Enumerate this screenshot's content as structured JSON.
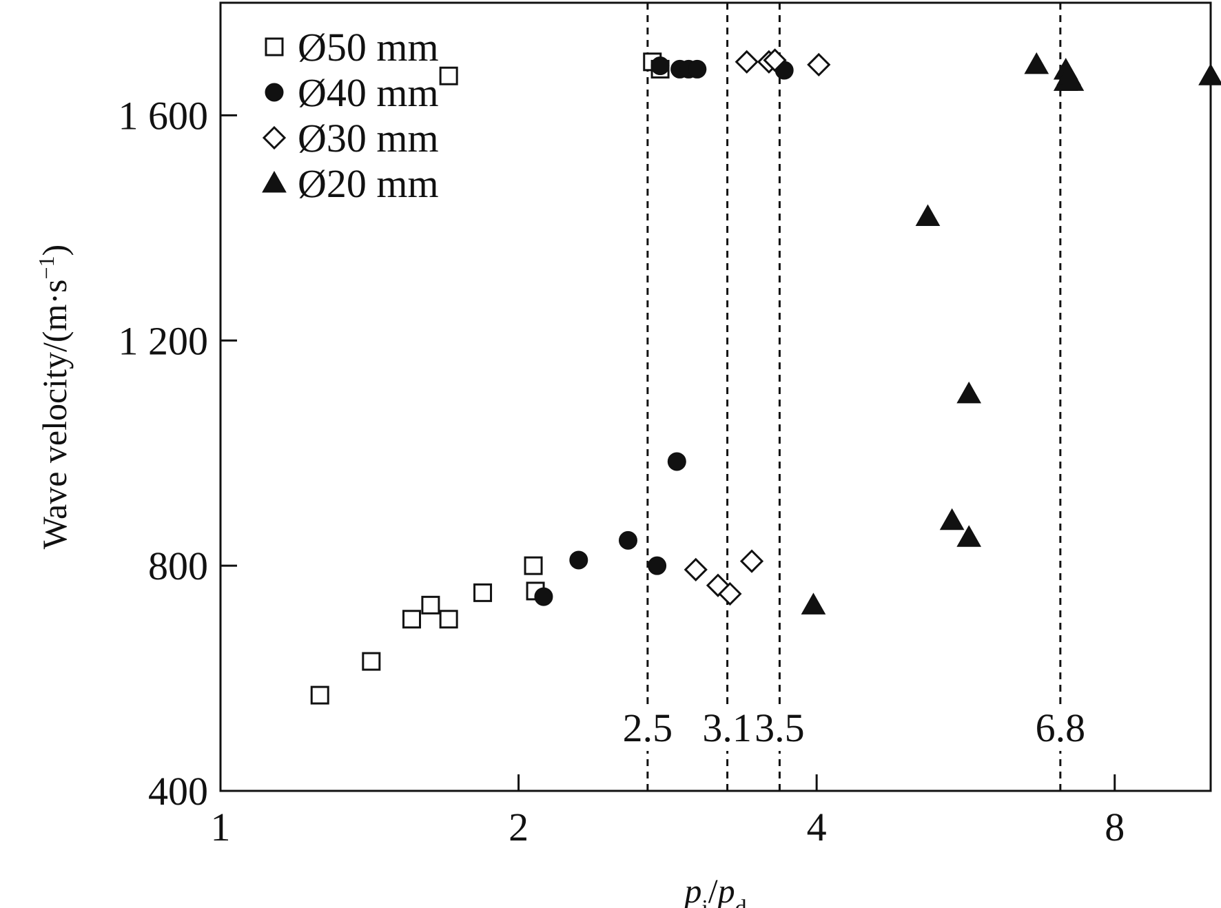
{
  "chart_data": {
    "type": "scatter",
    "title": "",
    "xlabel": "p_i/p_d",
    "xlabel_parts": {
      "main1": "p",
      "sub1": "i",
      "slash": "/",
      "main2": "p",
      "sub2": "d"
    },
    "ylabel": "Wave velocity/(m·s−1)",
    "ylabel_parts": {
      "main": "Wave velocity/(m·s",
      "sup": "−1",
      "tail": ")"
    },
    "x_scale": "log2",
    "xlim": [
      1,
      10
    ],
    "ylim": [
      400,
      1800
    ],
    "x_ticks": [
      1,
      2,
      4,
      8
    ],
    "x_tick_labels": [
      "1",
      "2",
      "4",
      "8"
    ],
    "y_ticks": [
      400,
      800,
      1200,
      1600
    ],
    "y_tick_labels": [
      "400",
      "800",
      "1 200",
      "1 600"
    ],
    "grid": false,
    "legend_position": "top-left",
    "reference_lines": [
      {
        "x": 2.7,
        "label": "2.5"
      },
      {
        "x": 3.25,
        "label": "3.1"
      },
      {
        "x": 3.67,
        "label": "3.5"
      },
      {
        "x": 7.05,
        "label": "6.8"
      }
    ],
    "series": [
      {
        "name": "Ø50 mm",
        "marker": "square-open",
        "color": "#111111",
        "points": [
          {
            "x": 1.26,
            "y": 570
          },
          {
            "x": 1.42,
            "y": 630
          },
          {
            "x": 1.56,
            "y": 705
          },
          {
            "x": 1.63,
            "y": 730
          },
          {
            "x": 1.7,
            "y": 705
          },
          {
            "x": 1.84,
            "y": 752
          },
          {
            "x": 2.07,
            "y": 800
          },
          {
            "x": 2.08,
            "y": 755
          },
          {
            "x": 1.7,
            "y": 1670
          },
          {
            "x": 2.73,
            "y": 1695
          },
          {
            "x": 2.78,
            "y": 1682
          }
        ]
      },
      {
        "name": "Ø40 mm",
        "marker": "circle-filled",
        "color": "#111111",
        "points": [
          {
            "x": 2.12,
            "y": 745
          },
          {
            "x": 2.3,
            "y": 810
          },
          {
            "x": 2.58,
            "y": 845
          },
          {
            "x": 2.76,
            "y": 800
          },
          {
            "x": 2.89,
            "y": 985
          },
          {
            "x": 2.78,
            "y": 1688
          },
          {
            "x": 2.91,
            "y": 1682
          },
          {
            "x": 2.97,
            "y": 1682
          },
          {
            "x": 3.03,
            "y": 1682
          },
          {
            "x": 3.71,
            "y": 1680
          }
        ]
      },
      {
        "name": "Ø30 mm",
        "marker": "diamond-open",
        "color": "#111111",
        "points": [
          {
            "x": 3.02,
            "y": 793
          },
          {
            "x": 3.18,
            "y": 765
          },
          {
            "x": 3.27,
            "y": 750
          },
          {
            "x": 3.44,
            "y": 808
          },
          {
            "x": 3.4,
            "y": 1695
          },
          {
            "x": 3.58,
            "y": 1695
          },
          {
            "x": 3.63,
            "y": 1698
          },
          {
            "x": 4.02,
            "y": 1690
          }
        ]
      },
      {
        "name": "Ø20 mm",
        "marker": "triangle-filled",
        "color": "#111111",
        "points": [
          {
            "x": 3.97,
            "y": 730
          },
          {
            "x": 5.18,
            "y": 1420
          },
          {
            "x": 5.48,
            "y": 880
          },
          {
            "x": 5.7,
            "y": 850
          },
          {
            "x": 5.7,
            "y": 1105
          },
          {
            "x": 6.67,
            "y": 1690
          },
          {
            "x": 7.14,
            "y": 1680
          },
          {
            "x": 7.14,
            "y": 1660
          },
          {
            "x": 7.19,
            "y": 1670
          },
          {
            "x": 7.24,
            "y": 1660
          },
          {
            "x": 10.0,
            "y": 1670
          }
        ]
      }
    ]
  }
}
